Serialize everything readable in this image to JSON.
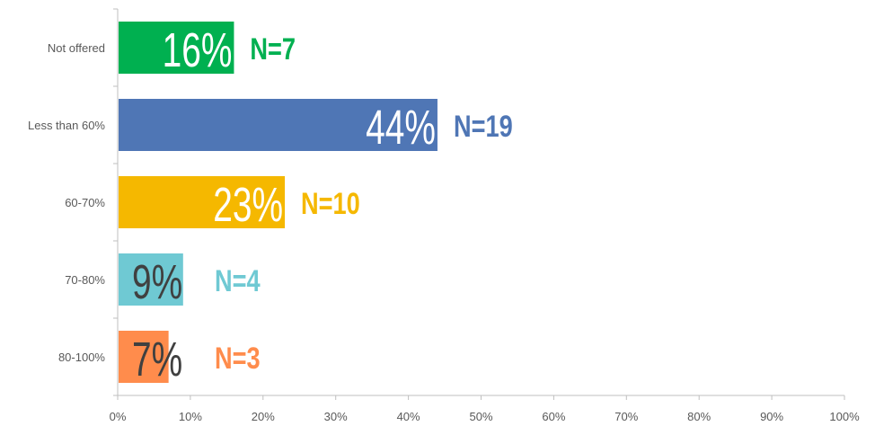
{
  "chart_data": {
    "type": "bar",
    "orientation": "horizontal",
    "title": "",
    "categories": [
      "Not offered",
      "Less than 60%",
      "60-70%",
      "70-80%",
      "80-100%"
    ],
    "values": [
      16,
      44,
      23,
      9,
      7
    ],
    "value_labels": [
      "16%",
      "44%",
      "23%",
      "9%",
      "7%"
    ],
    "n_labels": [
      "N=7",
      "N=19",
      "N=10",
      "N=4",
      "N=3"
    ],
    "bar_colors": [
      "#00b050",
      "#4f76b5",
      "#f5b800",
      "#6fc9d3",
      "#ff8c4c"
    ],
    "value_label_colors": [
      "#ffffff",
      "#ffffff",
      "#ffffff",
      "#404040",
      "#404040"
    ],
    "xlim": [
      0,
      100
    ],
    "xticks": [
      0,
      10,
      20,
      30,
      40,
      50,
      60,
      70,
      80,
      90,
      100
    ],
    "xtick_labels": [
      "0%",
      "10%",
      "20%",
      "30%",
      "40%",
      "50%",
      "60%",
      "70%",
      "80%",
      "90%",
      "100%"
    ],
    "grid": false,
    "legend": "none"
  }
}
